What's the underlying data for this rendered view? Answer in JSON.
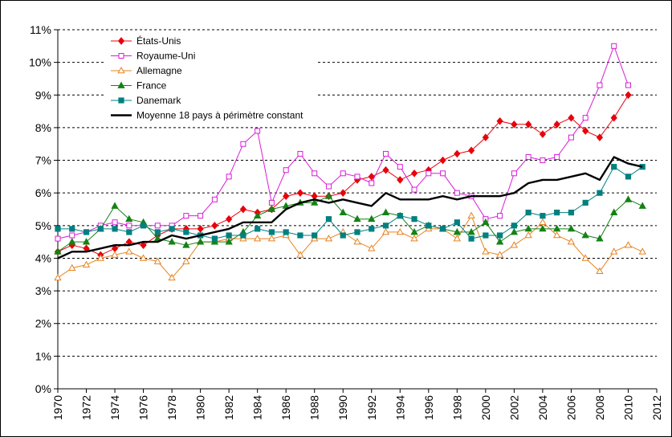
{
  "chart_data": {
    "type": "line",
    "title": "",
    "xlabel": "",
    "ylabel": "",
    "xlim": [
      1970,
      2012
    ],
    "ylim": [
      0,
      11
    ],
    "x_ticks": [
      "1970",
      "1972",
      "1974",
      "1976",
      "1978",
      "1980",
      "1982",
      "1984",
      "1986",
      "1988",
      "1990",
      "1992",
      "1994",
      "1996",
      "1998",
      "2000",
      "2002",
      "2004",
      "2006",
      "2008",
      "2010",
      "2012"
    ],
    "y_ticks": [
      "0%",
      "1%",
      "2%",
      "3%",
      "4%",
      "5%",
      "6%",
      "7%",
      "8%",
      "9%",
      "10%",
      "11%"
    ],
    "grid": "horizontal dashed",
    "legend_position": "top-left",
    "x": [
      1970,
      1971,
      1972,
      1973,
      1974,
      1975,
      1976,
      1977,
      1978,
      1979,
      1980,
      1981,
      1982,
      1983,
      1984,
      1985,
      1986,
      1987,
      1988,
      1989,
      1990,
      1991,
      1992,
      1993,
      1994,
      1995,
      1996,
      1997,
      1998,
      1999,
      2000,
      2001,
      2002,
      2003,
      2004,
      2005,
      2006,
      2007,
      2008,
      2009,
      2010,
      2011
    ],
    "series": [
      {
        "name": "États-Unis",
        "color": "#e8000b",
        "marker": "diamond",
        "values": [
          4.2,
          4.4,
          4.3,
          4.1,
          4.3,
          4.5,
          4.4,
          4.7,
          4.9,
          4.9,
          4.9,
          5.0,
          5.2,
          5.5,
          5.4,
          5.5,
          5.9,
          6.0,
          5.9,
          5.9,
          6.0,
          6.4,
          6.5,
          6.7,
          6.4,
          6.6,
          6.7,
          7.0,
          7.2,
          7.3,
          7.7,
          8.2,
          8.1,
          8.1,
          7.8,
          8.1,
          8.3,
          7.9,
          7.7,
          8.3,
          9.0,
          null
        ]
      },
      {
        "name": "Royaume-Uni",
        "color": "#d81ed8",
        "marker": "square-open",
        "values": [
          4.6,
          4.7,
          4.8,
          5.0,
          5.1,
          5.0,
          5.0,
          5.0,
          5.0,
          5.3,
          5.3,
          5.8,
          6.5,
          7.5,
          7.9,
          5.7,
          6.7,
          7.2,
          6.6,
          6.2,
          6.6,
          6.5,
          6.3,
          7.2,
          6.8,
          6.1,
          6.6,
          6.6,
          6.0,
          5.9,
          5.2,
          5.3,
          6.6,
          7.1,
          7.0,
          7.1,
          7.7,
          8.3,
          9.3,
          10.5,
          9.3,
          null
        ]
      },
      {
        "name": "Allemagne",
        "color": "#e8821e",
        "marker": "triangle-open",
        "values": [
          3.4,
          3.7,
          3.8,
          4.0,
          4.1,
          4.2,
          4.0,
          3.9,
          3.4,
          3.9,
          4.5,
          4.5,
          4.6,
          4.6,
          4.6,
          4.6,
          4.7,
          4.1,
          4.6,
          4.6,
          4.8,
          4.5,
          4.3,
          4.8,
          4.8,
          4.6,
          4.9,
          4.9,
          4.6,
          5.3,
          4.2,
          4.1,
          4.4,
          4.7,
          5.1,
          4.7,
          4.5,
          4.0,
          3.6,
          4.2,
          4.4,
          4.2
        ]
      },
      {
        "name": "France",
        "color": "#148214",
        "marker": "triangle",
        "values": [
          4.2,
          4.5,
          4.5,
          4.9,
          5.6,
          5.2,
          5.1,
          4.6,
          4.5,
          4.4,
          4.5,
          4.5,
          4.5,
          4.8,
          5.3,
          5.5,
          5.6,
          5.7,
          5.7,
          5.9,
          5.4,
          5.2,
          5.2,
          5.4,
          5.3,
          4.8,
          5.0,
          4.9,
          4.8,
          4.8,
          5.1,
          4.5,
          4.8,
          4.9,
          4.9,
          4.9,
          4.9,
          4.7,
          4.6,
          5.4,
          5.8,
          5.6
        ]
      },
      {
        "name": "Danemark",
        "color": "#008080",
        "marker": "square",
        "values": [
          4.9,
          4.9,
          4.8,
          4.9,
          4.9,
          4.8,
          5.0,
          4.8,
          4.9,
          4.8,
          4.7,
          4.6,
          4.7,
          4.7,
          4.9,
          4.8,
          4.8,
          4.7,
          4.7,
          5.2,
          4.7,
          4.8,
          4.9,
          5.0,
          5.3,
          5.2,
          5.0,
          4.9,
          5.1,
          4.6,
          4.7,
          4.7,
          5.0,
          5.4,
          5.3,
          5.4,
          5.4,
          5.7,
          6.0,
          6.8,
          6.5,
          6.8
        ]
      },
      {
        "name": "Moyenne 18 pays à périmètre constant",
        "color": "#000000",
        "marker": "none",
        "values": [
          4.0,
          4.2,
          4.2,
          4.3,
          4.4,
          4.4,
          4.5,
          4.5,
          4.7,
          4.6,
          4.7,
          4.8,
          4.9,
          5.1,
          5.1,
          5.1,
          5.5,
          5.7,
          5.8,
          5.7,
          5.8,
          5.7,
          5.6,
          6.0,
          5.8,
          5.8,
          5.8,
          5.9,
          5.8,
          5.9,
          5.9,
          5.9,
          6.0,
          6.3,
          6.4,
          6.4,
          6.5,
          6.6,
          6.4,
          7.1,
          6.9,
          6.8
        ]
      }
    ]
  }
}
